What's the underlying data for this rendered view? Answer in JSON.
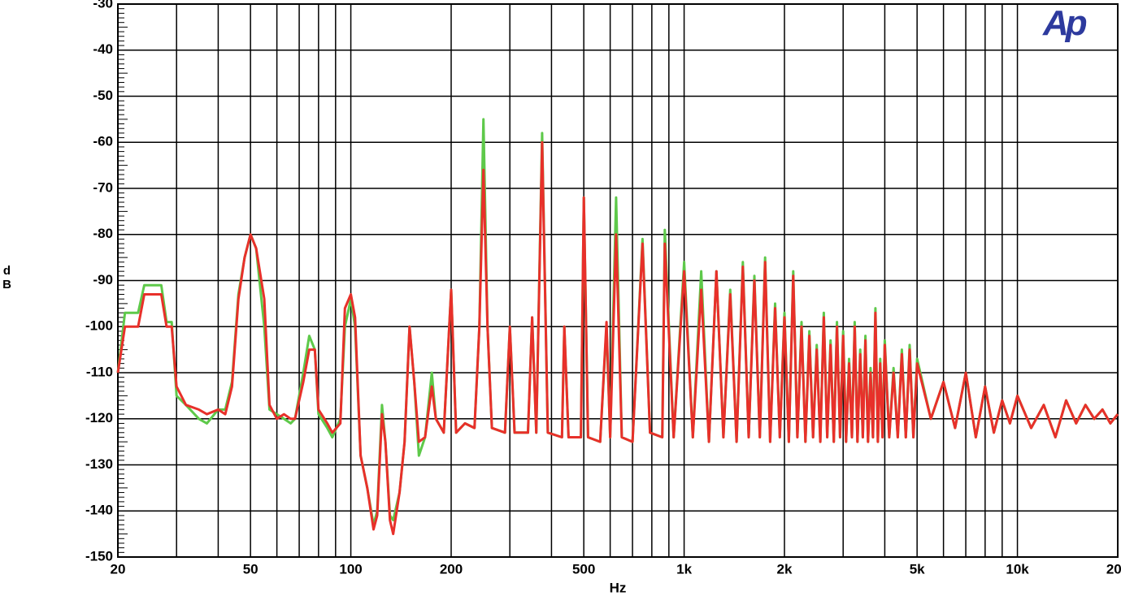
{
  "chart_data": {
    "type": "line",
    "xlabel": "Hz",
    "ylabel": "dB",
    "logo": "Ap",
    "xscale": "log",
    "grid": true,
    "xlim": [
      20,
      20000
    ],
    "ylim": [
      -150,
      -30
    ],
    "xticks": [
      20,
      50,
      100,
      200,
      500,
      {
        "value": 1000,
        "label": "1k"
      },
      {
        "value": 2000,
        "label": "2k"
      },
      {
        "value": 5000,
        "label": "5k"
      },
      {
        "value": 10000,
        "label": "10k"
      },
      {
        "value": 20000,
        "label": "20k"
      }
    ],
    "xminor": [
      30,
      40,
      60,
      70,
      80,
      90,
      300,
      400,
      600,
      700,
      800,
      900,
      3000,
      4000,
      6000,
      7000,
      8000,
      9000
    ],
    "yticks": [
      -30,
      -40,
      -50,
      -60,
      -70,
      -80,
      -90,
      -100,
      -110,
      -120,
      -130,
      -140,
      -150
    ],
    "x": [
      20,
      21,
      23,
      24,
      27,
      28,
      29,
      30,
      32,
      35,
      37,
      40,
      42,
      44,
      46,
      48,
      50,
      52,
      55,
      57,
      60,
      63,
      66,
      68,
      72,
      75,
      78,
      80,
      85,
      88,
      93,
      96,
      100,
      103,
      107,
      112,
      117,
      120,
      124,
      127,
      131,
      134,
      140,
      145,
      150,
      155,
      160,
      167,
      175,
      180,
      190,
      200,
      207,
      220,
      235,
      243,
      250,
      257,
      265,
      290,
      300,
      310,
      340,
      350,
      360,
      375,
      390,
      430,
      437,
      450,
      490,
      500,
      515,
      560,
      585,
      600,
      625,
      650,
      700,
      750,
      790,
      860,
      875,
      930,
      1000,
      1062,
      1125,
      1187,
      1250,
      1312,
      1375,
      1437,
      1500,
      1562,
      1625,
      1687,
      1750,
      1812,
      1875,
      1937,
      2000,
      2062,
      2125,
      2187,
      2250,
      2312,
      2375,
      2437,
      2500,
      2562,
      2625,
      2687,
      2750,
      2812,
      2875,
      2937,
      3000,
      3062,
      3125,
      3187,
      3250,
      3312,
      3375,
      3437,
      3500,
      3562,
      3625,
      3687,
      3750,
      3812,
      3875,
      3937,
      4000,
      4125,
      4250,
      4375,
      4500,
      4625,
      4750,
      4875,
      5000,
      5500,
      6000,
      6500,
      7000,
      7500,
      8000,
      8500,
      9000,
      9500,
      10000,
      11000,
      12000,
      13000,
      14000,
      15000,
      16000,
      17000,
      18000,
      19000,
      20000
    ],
    "series": [
      {
        "color": "#5ec94a",
        "values": [
          -110,
          -97,
          -97,
          -91,
          -91,
          -99,
          -99,
          -115,
          -117,
          -120,
          -121,
          -118,
          -118,
          -112,
          -93,
          -85,
          -80,
          -83,
          -100,
          -118,
          -119,
          -120,
          -121,
          -120,
          -110,
          -102,
          -105,
          -119,
          -122,
          -124,
          -120,
          -100,
          -94,
          -100,
          -128,
          -135,
          -143,
          -140,
          -117,
          -125,
          -141,
          -142,
          -136,
          -125,
          -100,
          -112,
          -128,
          -124,
          -110,
          -120,
          -123,
          -92,
          -123,
          -121,
          -122,
          -100,
          -55,
          -100,
          -122,
          -123,
          -100,
          -123,
          -123,
          -98,
          -123,
          -58,
          -123,
          -124,
          -100,
          -124,
          -124,
          -72,
          -124,
          -125,
          -100,
          -124,
          -72,
          -124,
          -125,
          -81,
          -123,
          -124,
          -79,
          -124,
          -86,
          -124,
          -88,
          -125,
          -88,
          -124,
          -92,
          -125,
          -86,
          -124,
          -89,
          -124,
          -85,
          -125,
          -95,
          -124,
          -97,
          -125,
          -88,
          -124,
          -99,
          -125,
          -101,
          -124,
          -104,
          -125,
          -97,
          -124,
          -103,
          -125,
          -99,
          -124,
          -101,
          -125,
          -107,
          -124,
          -99,
          -125,
          -105,
          -124,
          -102,
          -125,
          -109,
          -124,
          -96,
          -125,
          -107,
          -124,
          -103,
          -124,
          -109,
          -124,
          -105,
          -124,
          -104,
          -124,
          -107,
          -120,
          -112,
          -122,
          -110,
          -124,
          -113,
          -123,
          -116,
          -121,
          -115,
          -122,
          -117,
          -124,
          -116,
          -121,
          -117,
          -120,
          -118,
          -121,
          -119
        ]
      },
      {
        "color": "#e8302a",
        "values": [
          -110,
          -100,
          -100,
          -93,
          -93,
          -100,
          -100,
          -113,
          -117,
          -118,
          -119,
          -118,
          -119,
          -113,
          -94,
          -85,
          -80,
          -83,
          -94,
          -117,
          -120,
          -119,
          -120,
          -120,
          -112,
          -105,
          -105,
          -118,
          -121,
          -123,
          -121,
          -96,
          -93,
          -98,
          -128,
          -135,
          -144,
          -141,
          -119,
          -125,
          -142,
          -145,
          -136,
          -125,
          -100,
          -112,
          -125,
          -124,
          -113,
          -120,
          -123,
          -92,
          -123,
          -121,
          -122,
          -100,
          -66,
          -100,
          -122,
          -123,
          -100,
          -123,
          -123,
          -98,
          -123,
          -60,
          -123,
          -124,
          -100,
          -124,
          -124,
          -72,
          -124,
          -125,
          -99,
          -124,
          -80,
          -124,
          -125,
          -82,
          -123,
          -124,
          -82,
          -124,
          -88,
          -124,
          -92,
          -125,
          -88,
          -124,
          -93,
          -125,
          -87,
          -124,
          -90,
          -124,
          -86,
          -125,
          -96,
          -124,
          -98,
          -125,
          -89,
          -124,
          -100,
          -125,
          -102,
          -124,
          -105,
          -125,
          -98,
          -124,
          -104,
          -125,
          -100,
          -124,
          -102,
          -125,
          -108,
          -124,
          -100,
          -125,
          -106,
          -124,
          -103,
          -125,
          -110,
          -124,
          -97,
          -125,
          -108,
          -124,
          -104,
          -124,
          -110,
          -124,
          -106,
          -124,
          -105,
          -124,
          -108,
          -120,
          -112,
          -122,
          -110,
          -124,
          -113,
          -123,
          -116,
          -121,
          -115,
          -122,
          -117,
          -124,
          -116,
          -121,
          -117,
          -120,
          -118,
          -121,
          -119
        ]
      }
    ]
  }
}
